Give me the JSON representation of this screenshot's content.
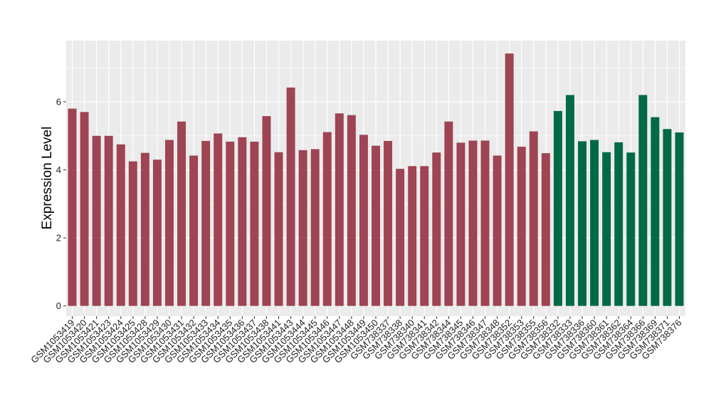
{
  "chart_data": {
    "type": "bar",
    "title": "",
    "xlabel": "",
    "ylabel": "Expression Level",
    "ylim": [
      -0.3,
      7.8
    ],
    "yticks": [
      0,
      2,
      4,
      6
    ],
    "grid": true,
    "legend": "none",
    "colors": {
      "group_1": "#9e4452",
      "group_2": "#006a45",
      "panel": "#ebebeb",
      "grid": "#ffffff"
    },
    "categories": [
      "GSM1053419",
      "GSM1053420",
      "GSM1053421",
      "GSM1053423",
      "GSM1053424",
      "GSM1053425",
      "GSM1053428",
      "GSM1053429",
      "GSM1053430",
      "GSM1053431",
      "GSM1053432",
      "GSM1053433",
      "GSM1053434",
      "GSM1053435",
      "GSM1053436",
      "GSM1053437",
      "GSM1053438",
      "GSM1053441",
      "GSM1053443",
      "GSM1053444",
      "GSM1053445",
      "GSM1053446",
      "GSM1053447",
      "GSM1053448",
      "GSM1053449",
      "GSM1053450",
      "GSM738337",
      "GSM738338",
      "GSM738340",
      "GSM738341",
      "GSM738342",
      "GSM738344",
      "GSM738345",
      "GSM738346",
      "GSM738347",
      "GSM738348",
      "GSM738352",
      "GSM738353",
      "GSM738355",
      "GSM738356",
      "GSM738332",
      "GSM738333",
      "GSM738336",
      "GSM738360",
      "GSM738361",
      "GSM738362",
      "GSM738364",
      "GSM738366",
      "GSM738369",
      "GSM738371",
      "GSM738376"
    ],
    "values": [
      5.8,
      5.7,
      5.0,
      5.0,
      4.75,
      4.25,
      4.5,
      4.3,
      4.88,
      5.42,
      4.42,
      4.85,
      5.07,
      4.83,
      4.96,
      4.83,
      5.58,
      4.52,
      6.42,
      4.58,
      4.61,
      5.11,
      5.66,
      5.61,
      5.03,
      4.71,
      4.85,
      4.03,
      4.11,
      4.11,
      4.51,
      5.42,
      4.8,
      4.86,
      4.86,
      4.42,
      7.42,
      4.68,
      5.13,
      4.49,
      5.73,
      6.2,
      4.84,
      4.88,
      4.52,
      4.81,
      4.51,
      6.2,
      5.55,
      5.2,
      5.1
    ],
    "groups": [
      1,
      1,
      1,
      1,
      1,
      1,
      1,
      1,
      1,
      1,
      1,
      1,
      1,
      1,
      1,
      1,
      1,
      1,
      1,
      1,
      1,
      1,
      1,
      1,
      1,
      1,
      1,
      1,
      1,
      1,
      1,
      1,
      1,
      1,
      1,
      1,
      1,
      1,
      1,
      1,
      2,
      2,
      2,
      2,
      2,
      2,
      2,
      2,
      2,
      2,
      2
    ]
  }
}
